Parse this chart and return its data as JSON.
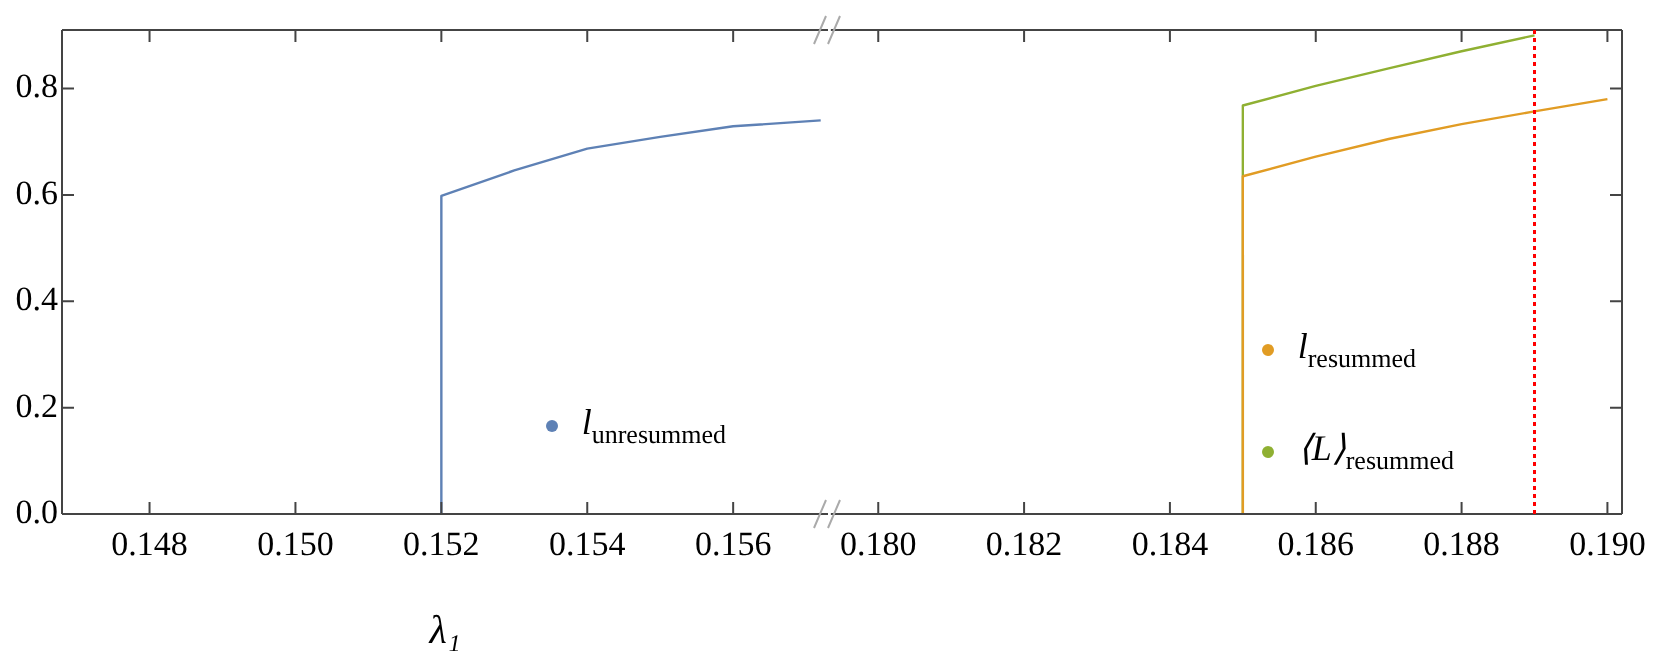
{
  "chart_data": [
    {
      "type": "line",
      "xlabel": "λ₁",
      "xlim": [
        0.1468,
        0.1573
      ],
      "xticks": [
        0.148,
        {
          "value": 0.15,
          "label": "0.150"
        },
        0.152,
        0.154,
        0.156
      ],
      "ylim": [
        0,
        0.91
      ],
      "yticks": [
        {
          "value": 0,
          "label": "0.0"
        },
        0.2,
        0.4,
        0.6,
        0.8
      ],
      "grid": false,
      "legend": "bottom right",
      "marker": "none",
      "line_style": "solid",
      "series": [
        {
          "name": "l$_{unresummed}$",
          "color": "#5e81b5",
          "x": [
            0.152,
            0.152,
            0.153,
            0.154,
            0.155,
            0.156,
            0.1572
          ],
          "values": [
            0,
            0.598,
            0.646,
            0.687,
            0.709,
            0.729,
            0.74
          ]
        }
      ]
    },
    {
      "type": "line",
      "xlim": [
        0.17935,
        0.1902
      ],
      "xticks": [
        {
          "value": 0.18,
          "label": "0.180"
        },
        0.182,
        0.184,
        0.186,
        0.188,
        {
          "value": 0.19,
          "label": "0.190"
        }
      ],
      "ylim": [
        0,
        0.91
      ],
      "yticks": [
        0,
        0.2,
        0.4,
        0.6,
        0.8
      ],
      "tick_labels": "x",
      "grid": false,
      "legend": "bottom right",
      "marker": "none",
      "line_style": "solid",
      "ref_lines": [
        {
          "axis": "x",
          "value": 0.189,
          "color": "#ff0000",
          "line_style": "dotted"
        }
      ],
      "series": [
        {
          "name": "l$_{resummed}$",
          "color": "#e19c24",
          "x": [
            0.185,
            0.185,
            0.186,
            0.187,
            0.188,
            0.189,
            0.19
          ],
          "values": [
            0,
            0.635,
            0.672,
            0.705,
            0.733,
            0.757,
            0.78
          ]
        },
        {
          "name": "⟨L⟩$_{resummed}$",
          "color": "#8fb032",
          "x": [
            0.185,
            0.185,
            0.186,
            0.187,
            0.188,
            0.189
          ],
          "values": [
            0,
            0.768,
            0.805,
            0.838,
            0.87,
            0.9
          ]
        }
      ]
    }
  ]
}
